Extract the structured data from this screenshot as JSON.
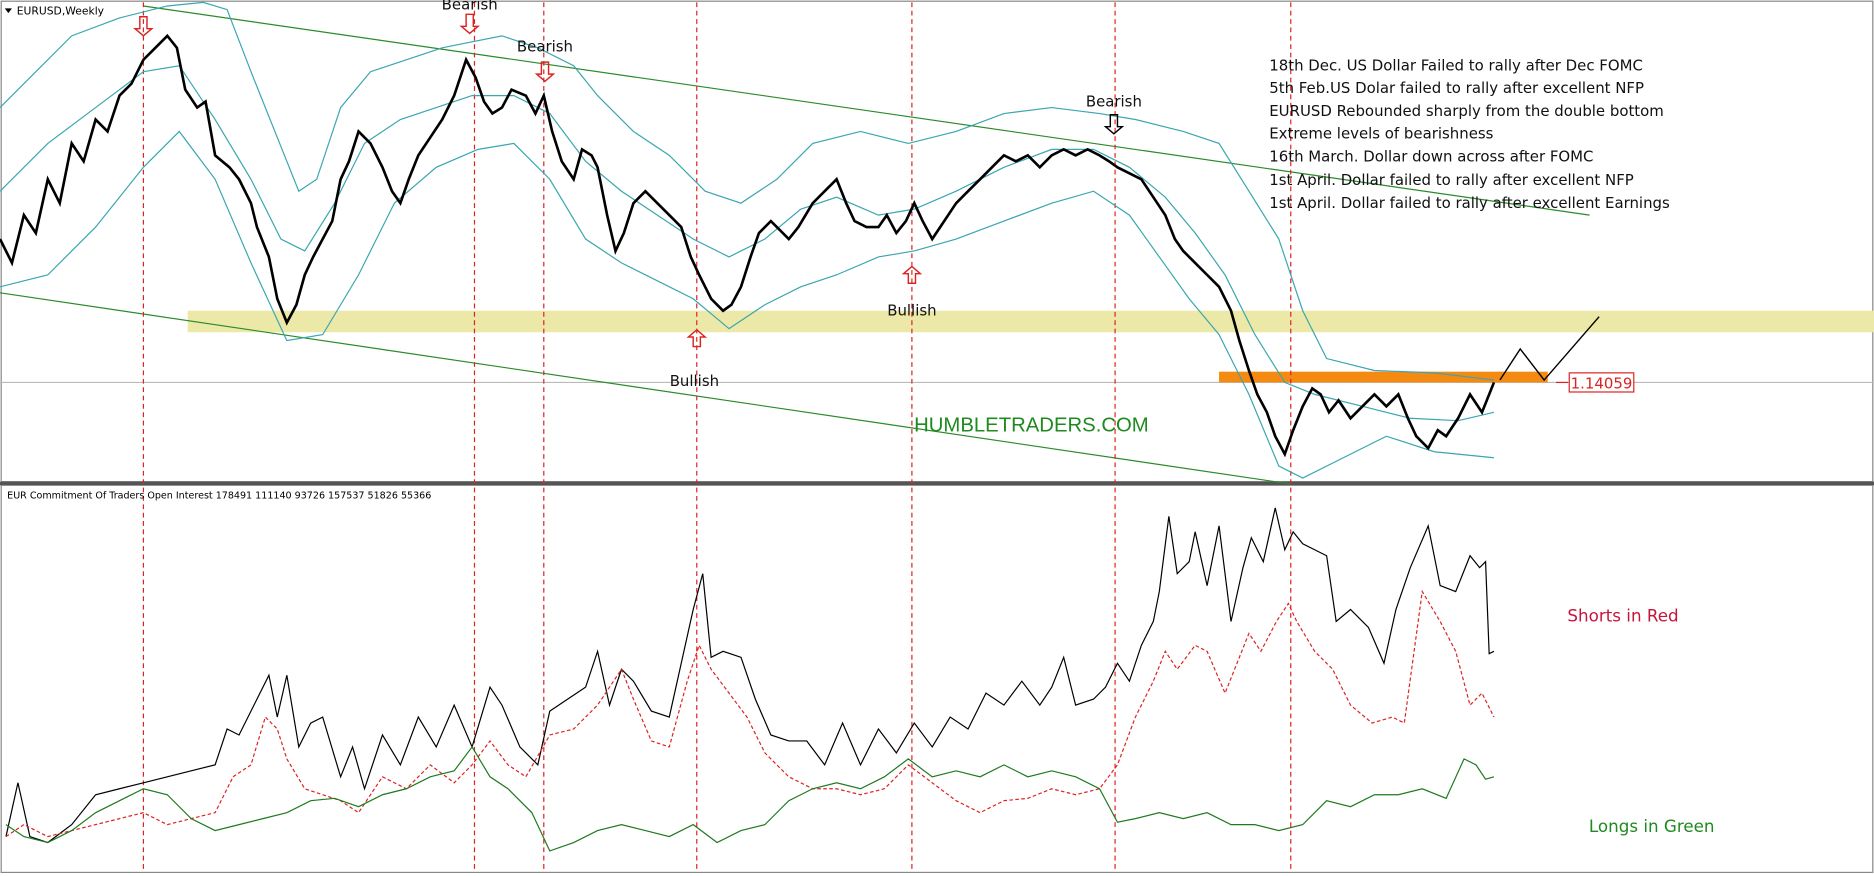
{
  "header": {
    "symbol": "EURUSD,Weekly"
  },
  "price_panel": {
    "labels": [
      "Bearish",
      "Bearish",
      "Bearish",
      "Bullish",
      "Bullish"
    ],
    "notes": [
      "18th Dec. US Dollar Failed to rally after Dec FOMC",
      "5th Feb.US Dolar failed to rally after excellent NFP",
      "EURUSD Rebounded sharply from the double bottom",
      "Extreme levels of bearishness",
      "16th March. Dollar down across after FOMC",
      "1st April. Dollar failed to rally after excellent NFP",
      "1st April. Dollar failed to rally after excellent Earnings"
    ],
    "price_label": "1.14059",
    "watermark": "HUMBLETRADERS.COM"
  },
  "indicator_panel": {
    "title": "EUR Commitment Of Traders Open Interest 178491 111140 93726 157537 51826 55366",
    "legend": [
      "Shorts in Red",
      "Longs in Green"
    ]
  }
}
